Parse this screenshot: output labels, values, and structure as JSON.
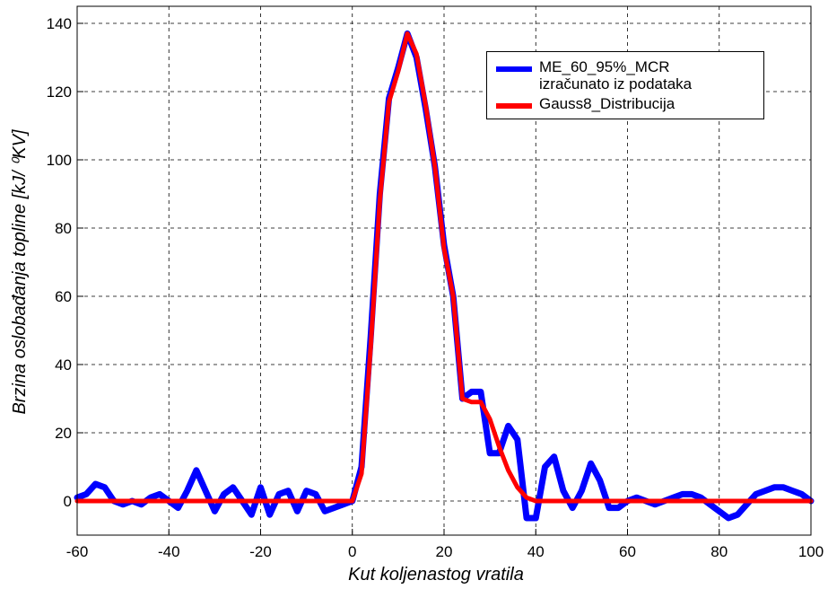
{
  "chart_data": {
    "type": "line",
    "xlabel": "Kut koljenastog vratila",
    "ylabel": "Brzina oslobađanja topline [kJ/ ⁰KV]",
    "x": [
      -60,
      -58,
      -56,
      -54,
      -52,
      -50,
      -48,
      -46,
      -44,
      -42,
      -40,
      -38,
      -36,
      -34,
      -32,
      -30,
      -28,
      -26,
      -24,
      -22,
      -20,
      -18,
      -16,
      -14,
      -12,
      -10,
      -8,
      -6,
      -4,
      -2,
      0,
      2,
      4,
      6,
      8,
      10,
      12,
      14,
      16,
      18,
      20,
      22,
      24,
      26,
      28,
      30,
      32,
      34,
      36,
      38,
      40,
      42,
      44,
      46,
      48,
      50,
      52,
      54,
      56,
      58,
      60,
      62,
      64,
      66,
      68,
      70,
      72,
      74,
      76,
      78,
      80,
      82,
      84,
      86,
      88,
      90,
      92,
      94,
      96,
      98,
      100
    ],
    "series": [
      {
        "name": "ME_60_95%_MCR\nizračunato iz podataka",
        "color": "#0000ff",
        "values": [
          1,
          2,
          5,
          4,
          0,
          -1,
          0,
          -1,
          1,
          2,
          0,
          -2,
          3,
          9,
          3,
          -3,
          2,
          4,
          0,
          -4,
          4,
          -4,
          2,
          3,
          -3,
          3,
          2,
          -3,
          -2,
          -1,
          0,
          10,
          48,
          90,
          118,
          127,
          137,
          130,
          115,
          98,
          75,
          60,
          30,
          32,
          32,
          14,
          14,
          22,
          18,
          -5,
          -5,
          10,
          13,
          3,
          -2,
          3,
          11,
          6,
          -2,
          -2,
          0,
          1,
          0,
          -1,
          0,
          1,
          2,
          2,
          1,
          -1,
          -3,
          -5,
          -4,
          -1,
          2,
          3,
          4,
          4,
          3,
          2,
          0
        ]
      },
      {
        "name": "Gauss8_Distribucija",
        "color": "#ff0000",
        "values": [
          0,
          0,
          0,
          0,
          0,
          0,
          0,
          0,
          0,
          0,
          0,
          0,
          0,
          0,
          0,
          0,
          0,
          0,
          0,
          0,
          0,
          0,
          0,
          0,
          0,
          0,
          0,
          0,
          0,
          0,
          0,
          8,
          45,
          88,
          117,
          126,
          137,
          131,
          116,
          98,
          74,
          60,
          30,
          29,
          29,
          24,
          16,
          9,
          4,
          1,
          0,
          0,
          0,
          0,
          0,
          0,
          0,
          0,
          0,
          0,
          0,
          0,
          0,
          0,
          0,
          0,
          0,
          0,
          0,
          0,
          0,
          0,
          0,
          0,
          0,
          0,
          0,
          0,
          0,
          0,
          0
        ]
      }
    ],
    "xlim": [
      -60,
      100
    ],
    "xticks": [
      -60,
      -40,
      -20,
      0,
      20,
      40,
      60,
      80,
      100
    ],
    "ylim": [
      -10,
      145
    ],
    "yticks": [
      0,
      20,
      40,
      60,
      80,
      100,
      120,
      140
    ],
    "grid": true,
    "legend": "upper right"
  }
}
